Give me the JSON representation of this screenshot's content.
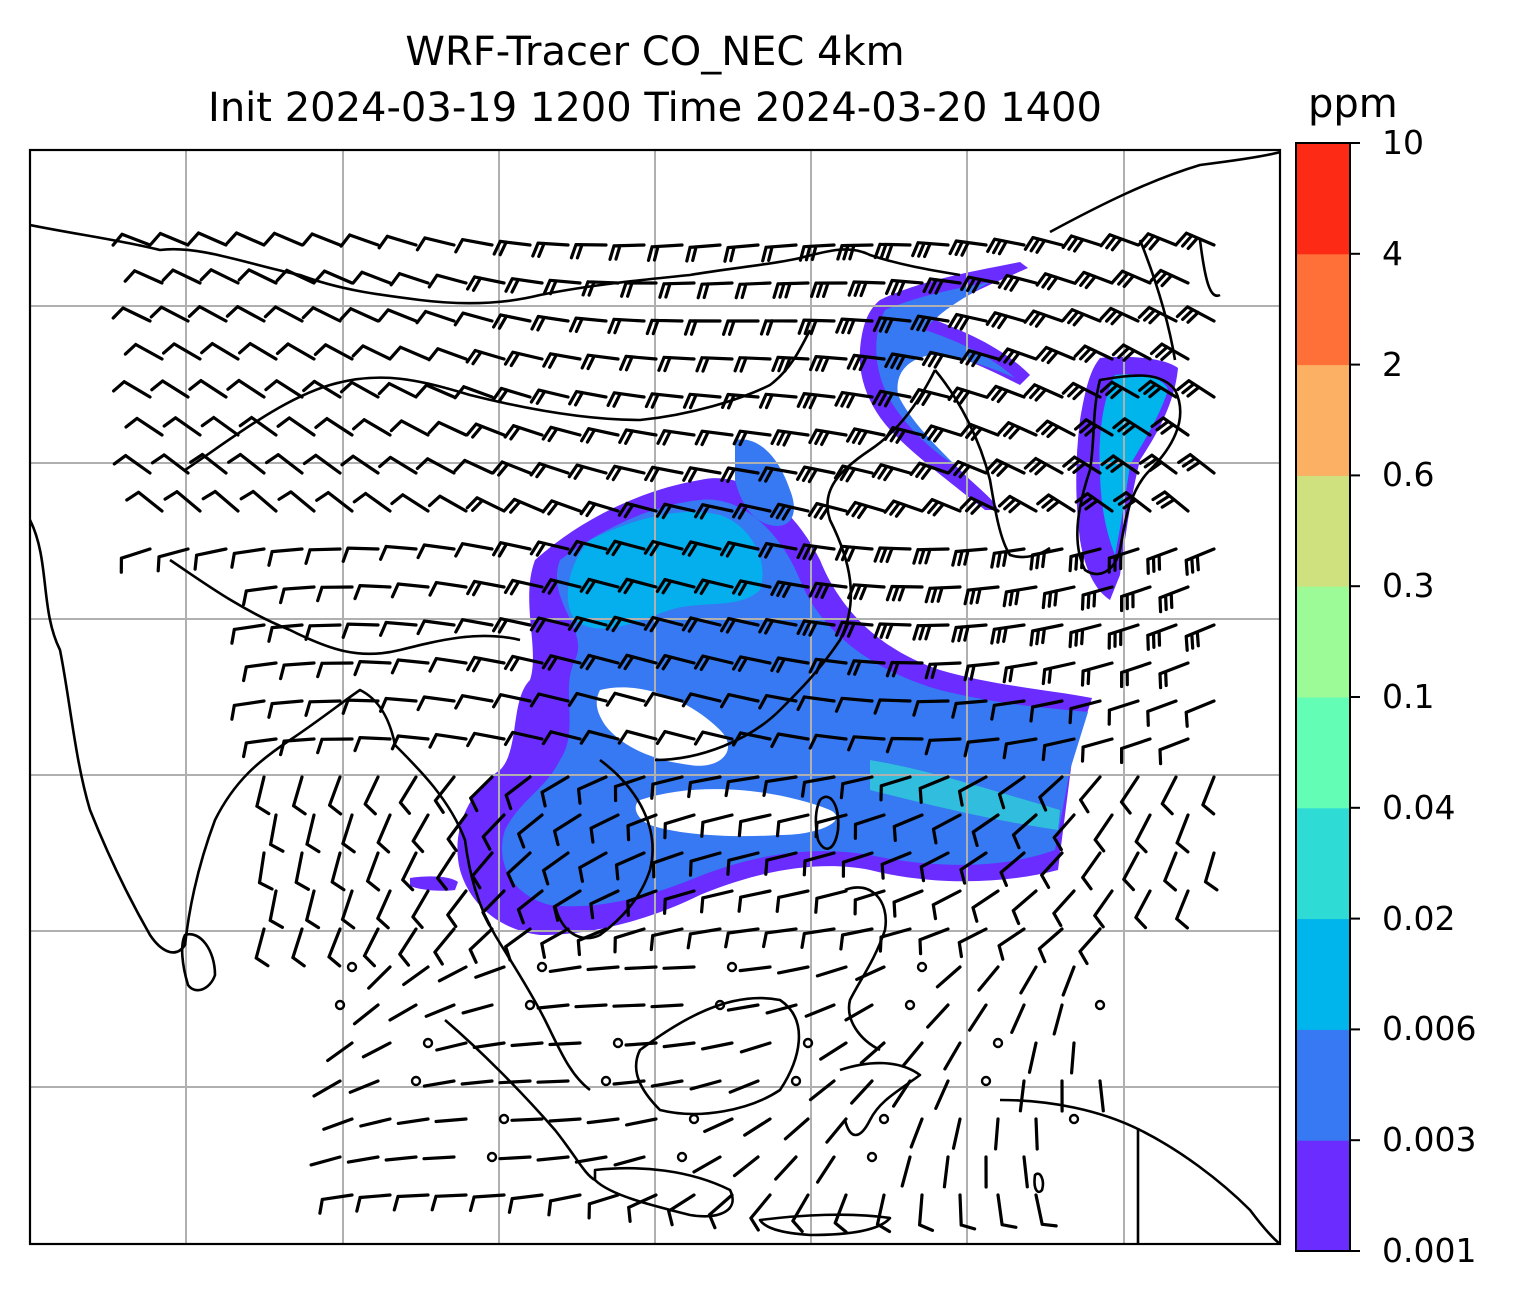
{
  "title_line1": "WRF-Tracer CO_NEC 4km",
  "title_line2": "Init 2024-03-19 1200 Time 2024-03-20 1400",
  "colorbar": {
    "unit": "ppm",
    "levels": [
      "0.001",
      "0.003",
      "0.006",
      "0.02",
      "0.04",
      "0.1",
      "0.3",
      "0.6",
      "2",
      "4",
      "10"
    ],
    "colors": [
      "#6a2cff",
      "#3679f2",
      "#00b4ec",
      "#2fdcd5",
      "#63fdb6",
      "#9cfb97",
      "#cfe17e",
      "#fcb063",
      "#ff7038",
      "#fd2b16"
    ]
  },
  "map": {
    "frame_color": "#000000",
    "grid_color": "#b0b0b0",
    "coastline_color": "#000000",
    "wind_barb_color": "#000000"
  }
}
